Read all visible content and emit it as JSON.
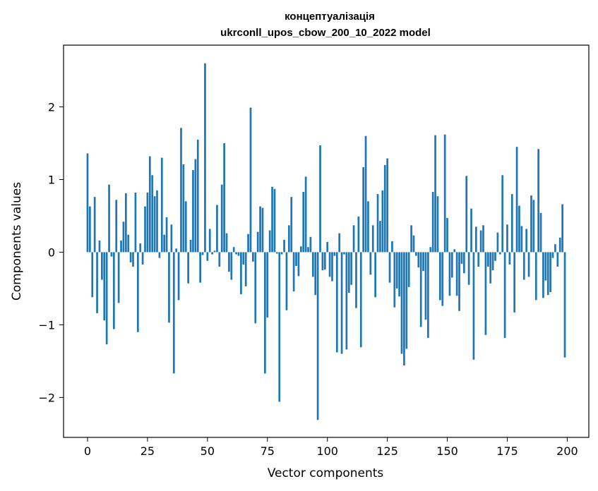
{
  "chart_data": {
    "type": "bar",
    "title": "концептуалізація",
    "subtitle": "ukrconll_upos_cbow_200_10_2022 model",
    "xlabel": "Vector components",
    "ylabel": "Components values",
    "xlim": [
      -10,
      209
    ],
    "ylim": [
      -2.55,
      2.85
    ],
    "x_ticks": [
      0,
      25,
      50,
      75,
      100,
      125,
      150,
      175,
      200
    ],
    "y_ticks": [
      -2,
      -1,
      0,
      1,
      2
    ],
    "x_tick_labels": [
      "0",
      "25",
      "50",
      "75",
      "100",
      "125",
      "150",
      "175",
      "200"
    ],
    "y_tick_labels": [
      "−2",
      "−1",
      "0",
      "1",
      "2"
    ],
    "grid": false,
    "bar_color": "#1f77b4",
    "values": [
      1.36,
      0.63,
      -0.62,
      0.76,
      -0.84,
      0.16,
      -0.38,
      -0.94,
      -1.27,
      0.93,
      -0.06,
      -1.06,
      0.72,
      -0.7,
      0.16,
      0.42,
      0.81,
      0.24,
      -0.14,
      -0.2,
      0.82,
      -1.1,
      0.12,
      -0.17,
      0.63,
      0.82,
      1.32,
      1.06,
      0.77,
      0.85,
      -0.08,
      1.3,
      0.24,
      0.48,
      -0.97,
      0.38,
      -1.67,
      0.05,
      -0.66,
      1.71,
      1.21,
      0.7,
      -0.43,
      0.17,
      1.13,
      1.28,
      1.55,
      -0.42,
      -0.04,
      2.6,
      -0.12,
      0.32,
      -0.03,
      0.02,
      0.65,
      -0.2,
      0.93,
      1.5,
      0.26,
      -0.27,
      -0.38,
      0.07,
      -0.03,
      -0.05,
      -0.58,
      -0.17,
      -0.47,
      0.25,
      1.99,
      -0.13,
      -0.98,
      0.28,
      0.63,
      0.61,
      -1.67,
      -0.9,
      0.3,
      0.9,
      0.87,
      -0.02,
      -2.06,
      -0.03,
      0.17,
      -0.8,
      0.37,
      0.76,
      -0.54,
      -0.19,
      -0.33,
      0.08,
      0.83,
      1.04,
      0.07,
      0.21,
      -0.34,
      -0.59,
      -2.31,
      1.47,
      -0.25,
      -0.24,
      0.14,
      -0.34,
      -0.4,
      -0.05,
      -1.38,
      0.26,
      -1.4,
      -0.03,
      -1.34,
      -0.56,
      -0.45,
      0.37,
      -0.77,
      0.49,
      -1.31,
      1.17,
      1.6,
      0.7,
      -0.31,
      0.37,
      -0.62,
      0.8,
      0.43,
      0.85,
      1.2,
      1.29,
      -0.42,
      0.15,
      -0.76,
      -0.5,
      -0.61,
      -1.4,
      -1.56,
      -1.33,
      -0.48,
      0.37,
      0.23,
      -0.05,
      -0.21,
      -1.03,
      -0.26,
      -0.93,
      -1.18,
      0.07,
      0.83,
      1.61,
      0.77,
      -0.66,
      -0.74,
      1.62,
      0.47,
      -0.6,
      -0.35,
      0.04,
      -0.6,
      -0.81,
      -0.16,
      -0.29,
      1.05,
      -0.45,
      0.6,
      -1.48,
      0.35,
      -0.2,
      0.3,
      0.37,
      -1.14,
      -0.2,
      -0.43,
      -0.25,
      -0.12,
      0.27,
      -0.03,
      1.06,
      -1.18,
      0.38,
      -0.17,
      0.8,
      -0.83,
      1.45,
      0.64,
      0.36,
      -0.38,
      0.32,
      -0.34,
      0.78,
      0.72,
      -0.66,
      1.42,
      0.54,
      -0.63,
      -0.39,
      -0.59,
      -0.55,
      -0.08,
      0.11,
      -0.2,
      0.2,
      0.66,
      -1.45
    ]
  }
}
